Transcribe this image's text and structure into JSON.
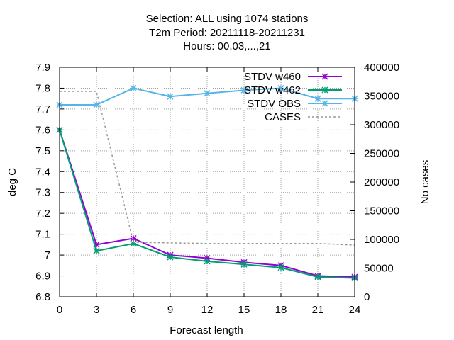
{
  "chart_data": {
    "type": "line",
    "title_lines": [
      "Selection: ALL using  1074 stations",
      "T2m   Period: 20211118-20211231",
      "Hours:  00,03,...,21"
    ],
    "xlabel": "Forecast length",
    "ylabel": "deg C",
    "y2label": "No cases",
    "x": [
      0,
      3,
      6,
      9,
      12,
      15,
      18,
      21,
      24
    ],
    "xlim": [
      0,
      24
    ],
    "ylim": [
      6.8,
      7.9
    ],
    "y2lim": [
      0,
      400000
    ],
    "xticks": [
      0,
      3,
      6,
      9,
      12,
      15,
      18,
      21,
      24
    ],
    "yticks": [
      6.8,
      6.9,
      7.0,
      7.1,
      7.2,
      7.3,
      7.4,
      7.5,
      7.6,
      7.7,
      7.8,
      7.9
    ],
    "ytick_labels": [
      "6.8",
      "6.9",
      "7",
      "7.1",
      "7.2",
      "7.3",
      "7.4",
      "7.5",
      "7.6",
      "7.7",
      "7.8",
      "7.9"
    ],
    "y2ticks": [
      0,
      50000,
      100000,
      150000,
      200000,
      250000,
      300000,
      350000,
      400000
    ],
    "grid": true,
    "legend_position": "top-right",
    "series": [
      {
        "name": "STDV w460",
        "axis": "y",
        "color": "#9400d3",
        "marker": "star",
        "values": [
          7.6,
          7.05,
          7.08,
          7.0,
          6.985,
          6.965,
          6.95,
          6.9,
          6.895
        ]
      },
      {
        "name": "STDV w462",
        "axis": "y",
        "color": "#009e73",
        "marker": "star",
        "values": [
          7.6,
          7.02,
          7.055,
          6.99,
          6.97,
          6.955,
          6.94,
          6.895,
          6.89
        ]
      },
      {
        "name": "STDV OBS",
        "axis": "y",
        "color": "#56b4e9",
        "marker": "star",
        "values": [
          7.72,
          7.72,
          7.8,
          7.76,
          7.775,
          7.79,
          7.8,
          7.75,
          7.75
        ]
      },
      {
        "name": "CASES",
        "axis": "y2",
        "color": "#999999",
        "marker": "none",
        "dash": true,
        "values": [
          358000,
          358000,
          95000,
          94000,
          93000,
          93000,
          93000,
          93000,
          90000
        ]
      }
    ]
  }
}
